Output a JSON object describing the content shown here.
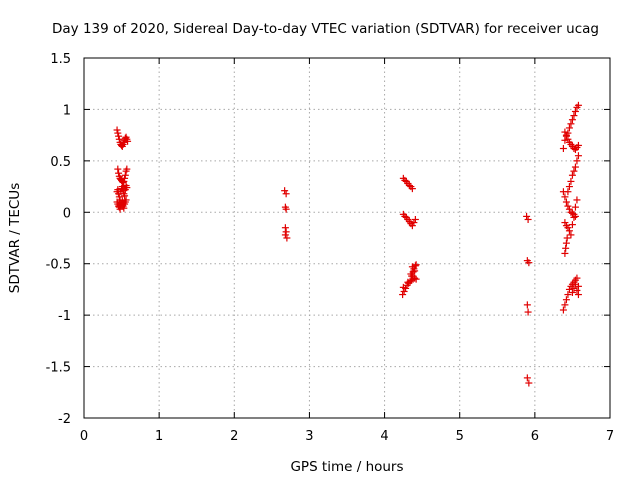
{
  "chart_data": {
    "type": "scatter",
    "title": "Day 139 of 2020, Sidereal Day-to-day VTEC variation (SDTVAR) for receiver ucag",
    "xlabel": "GPS time / hours",
    "ylabel": "SDTVAR / TECUs",
    "xlim": [
      0,
      7
    ],
    "ylim": [
      -2,
      1.5
    ],
    "xticks": [
      "0",
      "1",
      "2",
      "3",
      "4",
      "5",
      "6",
      "7"
    ],
    "yticks": [
      "-2",
      "-1.5",
      "-1",
      "-0.5",
      "0",
      "0.5",
      "1",
      "1.5"
    ],
    "grid": true,
    "marker": "+",
    "color": "#e00000",
    "series": [
      {
        "name": "SDTVAR",
        "x": [
          0.44,
          0.45,
          0.46,
          0.47,
          0.48,
          0.49,
          0.5,
          0.51,
          0.52,
          0.53,
          0.54,
          0.55,
          0.56,
          0.57,
          0.58,
          0.45,
          0.46,
          0.47,
          0.48,
          0.49,
          0.5,
          0.51,
          0.52,
          0.53,
          0.54,
          0.55,
          0.56,
          0.57,
          0.44,
          0.45,
          0.46,
          0.47,
          0.48,
          0.49,
          0.5,
          0.51,
          0.52,
          0.53,
          0.54,
          0.55,
          0.56,
          0.57,
          0.44,
          0.45,
          0.46,
          0.47,
          0.48,
          0.49,
          0.5,
          0.51,
          0.52,
          0.53,
          0.54,
          0.55,
          0.56,
          2.67,
          2.69,
          2.68,
          2.69,
          2.68,
          2.69,
          2.68,
          2.7,
          4.25,
          4.27,
          4.29,
          4.31,
          4.33,
          4.35,
          4.37,
          4.25,
          4.27,
          4.29,
          4.31,
          4.33,
          4.35,
          4.37,
          4.39,
          4.41,
          4.37,
          4.39,
          4.41,
          4.35,
          4.38,
          4.4,
          4.36,
          4.42,
          4.24,
          4.26,
          4.28,
          4.3,
          4.32,
          4.34,
          4.36,
          4.38,
          4.4,
          4.42,
          4.25,
          4.31,
          4.37,
          5.89,
          5.91,
          5.9,
          5.92,
          5.9,
          5.91,
          5.9,
          5.92,
          6.38,
          6.4,
          6.42,
          6.44,
          6.46,
          6.48,
          6.5,
          6.52,
          6.54,
          6.56,
          6.58,
          6.4,
          6.42,
          6.44,
          6.46,
          6.48,
          6.5,
          6.52,
          6.54,
          6.56,
          6.58,
          6.38,
          6.4,
          6.42,
          6.44,
          6.46,
          6.48,
          6.5,
          6.52,
          6.54,
          6.4,
          6.42,
          6.44,
          6.46,
          6.48,
          6.5,
          6.52,
          6.54,
          6.56,
          6.44,
          6.46,
          6.48,
          6.5,
          6.52,
          6.54,
          6.56,
          6.58,
          6.38,
          6.4,
          6.42,
          6.44,
          6.46,
          6.48,
          6.5,
          6.52,
          6.54,
          6.56,
          6.58,
          6.4,
          6.41,
          6.42,
          6.43,
          6.5,
          6.52,
          6.54,
          6.56,
          6.58
        ],
        "y": [
          0.8,
          0.77,
          0.74,
          0.71,
          0.68,
          0.66,
          0.65,
          0.64,
          0.66,
          0.68,
          0.7,
          0.72,
          0.73,
          0.71,
          0.69,
          0.42,
          0.38,
          0.35,
          0.33,
          0.32,
          0.31,
          0.3,
          0.29,
          0.3,
          0.33,
          0.36,
          0.4,
          0.42,
          0.2,
          0.22,
          0.18,
          0.15,
          0.12,
          0.2,
          0.23,
          0.25,
          0.21,
          0.18,
          0.16,
          0.22,
          0.26,
          0.24,
          0.1,
          0.08,
          0.06,
          0.05,
          0.03,
          0.07,
          0.09,
          0.11,
          0.06,
          0.04,
          0.08,
          0.1,
          0.12,
          0.21,
          0.18,
          0.05,
          0.03,
          -0.15,
          -0.19,
          -0.22,
          -0.25,
          0.33,
          0.31,
          0.3,
          0.28,
          0.26,
          0.25,
          0.23,
          -0.02,
          -0.04,
          -0.05,
          -0.07,
          -0.09,
          -0.11,
          -0.13,
          -0.1,
          -0.07,
          -0.53,
          -0.55,
          -0.52,
          -0.6,
          -0.58,
          -0.57,
          -0.62,
          -0.51,
          -0.8,
          -0.77,
          -0.74,
          -0.71,
          -0.69,
          -0.67,
          -0.66,
          -0.65,
          -0.64,
          -0.65,
          -0.73,
          -0.68,
          -0.62,
          -0.04,
          -0.07,
          -0.47,
          -0.49,
          -0.9,
          -0.97,
          -1.61,
          -1.66,
          0.62,
          0.7,
          0.74,
          0.77,
          0.82,
          0.86,
          0.9,
          0.94,
          0.98,
          1.02,
          1.04,
          0.78,
          0.75,
          0.71,
          0.68,
          0.66,
          0.64,
          0.62,
          0.61,
          0.63,
          0.65,
          0.2,
          0.15,
          0.1,
          0.06,
          0.03,
          0.0,
          -0.01,
          -0.02,
          -0.04,
          -0.1,
          -0.13,
          -0.15,
          -0.18,
          -0.22,
          -0.12,
          -0.05,
          0.05,
          0.12,
          0.2,
          0.25,
          0.3,
          0.36,
          0.4,
          0.44,
          0.5,
          0.55,
          -0.95,
          -0.9,
          -0.85,
          -0.8,
          -0.75,
          -0.72,
          -0.7,
          -0.68,
          -0.66,
          -0.64,
          -0.72,
          -0.4,
          -0.35,
          -0.3,
          -0.25,
          -0.78,
          -0.74,
          -0.7,
          -0.76,
          -0.8
        ]
      }
    ]
  }
}
